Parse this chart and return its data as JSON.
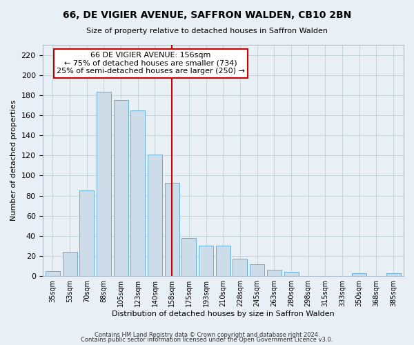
{
  "title": "66, DE VIGIER AVENUE, SAFFRON WALDEN, CB10 2BN",
  "subtitle": "Size of property relative to detached houses in Saffron Walden",
  "xlabel": "Distribution of detached houses by size in Saffron Walden",
  "ylabel": "Number of detached properties",
  "bar_labels": [
    "35sqm",
    "53sqm",
    "70sqm",
    "88sqm",
    "105sqm",
    "123sqm",
    "140sqm",
    "158sqm",
    "175sqm",
    "193sqm",
    "210sqm",
    "228sqm",
    "245sqm",
    "263sqm",
    "280sqm",
    "298sqm",
    "315sqm",
    "333sqm",
    "350sqm",
    "368sqm",
    "385sqm"
  ],
  "bar_values": [
    5,
    24,
    85,
    183,
    175,
    165,
    121,
    93,
    38,
    30,
    30,
    17,
    12,
    6,
    4,
    0,
    0,
    0,
    3,
    0,
    3
  ],
  "bar_color": "#ccdce8",
  "bar_edge_color": "#6baed6",
  "highlight_index": 7,
  "highlight_line_color": "#cc0000",
  "annotation_title": "66 DE VIGIER AVENUE: 156sqm",
  "annotation_line1": "← 75% of detached houses are smaller (734)",
  "annotation_line2": "25% of semi-detached houses are larger (250) →",
  "annotation_box_edge": "#cc0000",
  "ylim": [
    0,
    230
  ],
  "yticks": [
    0,
    20,
    40,
    60,
    80,
    100,
    120,
    140,
    160,
    180,
    200,
    220
  ],
  "bg_color": "#e8eff5",
  "plot_bg_color": "#e8eff5",
  "footer1": "Contains HM Land Registry data © Crown copyright and database right 2024.",
  "footer2": "Contains public sector information licensed under the Open Government Licence v3.0."
}
